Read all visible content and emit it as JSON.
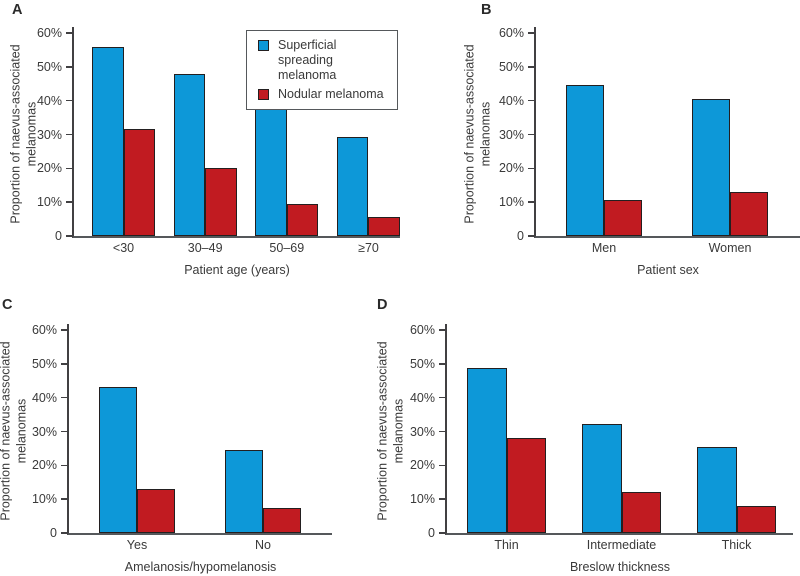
{
  "figure": {
    "legend": {
      "items": [
        {
          "label": "Superficial spreading melanoma",
          "series_key": "ssm"
        },
        {
          "label": "Nodular melanoma",
          "series_key": "nm"
        }
      ],
      "position": "top-right-of-panel-A"
    },
    "colors": {
      "ssm_blue": "#0d98d8",
      "nm_red": "#c11b21",
      "bar_border": "#231f20",
      "axis": "#414042",
      "text": "#3a3a3a"
    }
  },
  "chart_data": [
    {
      "type": "bar",
      "panel_label": "A",
      "ylabel": "Proportion of naevus-associated melanomas",
      "xlabel": "Patient age (years)",
      "categories": [
        "<30",
        "30–49",
        "50–69",
        "≥70"
      ],
      "series": [
        {
          "name": "Superficial spreading melanoma",
          "values": [
            56.0,
            48.0,
            39.4,
            29.3
          ]
        },
        {
          "name": "Nodular melanoma",
          "values": [
            31.6,
            20.0,
            9.6,
            5.6
          ]
        }
      ],
      "ylim": [
        0,
        60
      ],
      "yticks": [
        "0",
        "10%",
        "20%",
        "30%",
        "40%",
        "50%",
        "60%"
      ],
      "grid": false,
      "legend_position": "top-right"
    },
    {
      "type": "bar",
      "panel_label": "B",
      "ylabel": "Proportion of naevus-associated melanomas",
      "xlabel": "Patient sex",
      "categories": [
        "Men",
        "Women"
      ],
      "series": [
        {
          "name": "Superficial spreading melanoma",
          "values": [
            44.7,
            40.5
          ]
        },
        {
          "name": "Nodular melanoma",
          "values": [
            10.8,
            13.1
          ]
        }
      ],
      "ylim": [
        0,
        60
      ],
      "yticks": [
        "0",
        "10%",
        "20%",
        "30%",
        "40%",
        "50%",
        "60%"
      ],
      "grid": false,
      "legend_position": "none"
    },
    {
      "type": "bar",
      "panel_label": "C",
      "ylabel": "Proportion of naevus-associated melanomas",
      "xlabel": "Amelanosis/hypomelanosis",
      "categories": [
        "Yes",
        "No"
      ],
      "series": [
        {
          "name": "Superficial spreading melanoma",
          "values": [
            43.2,
            24.4
          ]
        },
        {
          "name": "Nodular melanoma",
          "values": [
            13.0,
            7.3
          ]
        }
      ],
      "ylim": [
        0,
        60
      ],
      "yticks": [
        "0",
        "10%",
        "20%",
        "30%",
        "40%",
        "50%",
        "60%"
      ],
      "grid": false,
      "legend_position": "none"
    },
    {
      "type": "bar",
      "panel_label": "D",
      "ylabel": "Proportion of naevus-associated melanomas",
      "xlabel": "Breslow thickness",
      "categories": [
        "Thin",
        "Intermediate",
        "Thick"
      ],
      "series": [
        {
          "name": "Superficial spreading melanoma",
          "values": [
            48.8,
            32.3,
            25.4
          ]
        },
        {
          "name": "Nodular melanoma",
          "values": [
            28.2,
            12.2,
            8.0
          ]
        }
      ],
      "ylim": [
        0,
        60
      ],
      "yticks": [
        "0",
        "10%",
        "20%",
        "30%",
        "40%",
        "50%",
        "60%"
      ],
      "grid": false,
      "legend_position": "none"
    }
  ]
}
